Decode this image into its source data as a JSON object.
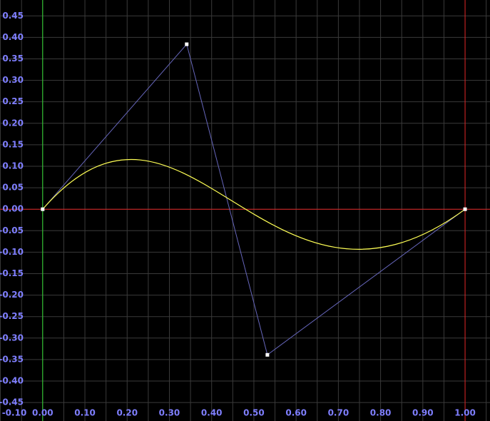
{
  "chart_data": {
    "type": "bezier",
    "x": [
      0,
      0.341,
      0.532,
      1
    ],
    "values": [
      0,
      0.384,
      -0.339,
      0
    ],
    "xlim": [
      -0.101,
      1.059
    ],
    "ylim": [
      -0.493,
      0.487
    ],
    "xticks": [
      {
        "value": -0.1,
        "label": "-0.10"
      },
      {
        "value": 0,
        "label": "0.00"
      },
      {
        "value": 0.1,
        "label": "0.10"
      },
      {
        "value": 0.2,
        "label": "0.20"
      },
      {
        "value": 0.3,
        "label": "0.30"
      },
      {
        "value": 0.4,
        "label": "0.40"
      },
      {
        "value": 0.5,
        "label": "0.50"
      },
      {
        "value": 0.6,
        "label": "0.60"
      },
      {
        "value": 0.7,
        "label": "0.70"
      },
      {
        "value": 0.8,
        "label": "0.80"
      },
      {
        "value": 0.9,
        "label": "0.90"
      },
      {
        "value": 1,
        "label": "1.00"
      }
    ],
    "yticks": [
      {
        "value": -0.45,
        "label": "-0.45"
      },
      {
        "value": -0.4,
        "label": "-0.40"
      },
      -0.35,
      {
        "value": -0.3,
        "label": "-0.30"
      },
      -0.25,
      {
        "value": -0.2,
        "label": "-0.20"
      },
      -0.15,
      {
        "value": -0.1,
        "label": "-0.10"
      },
      -0.05,
      {
        "value": 0,
        "label": "0.00"
      },
      0.05,
      {
        "value": 0.1,
        "label": "0.10"
      },
      0.15,
      {
        "value": 0.2,
        "label": "0.20"
      },
      0.25,
      {
        "value": 0.3,
        "label": "0.30"
      },
      0.35,
      {
        "value": 0.4,
        "label": "0.40"
      },
      0.45
    ],
    "grid": true,
    "grid_color": "#3a3a3a",
    "curve_color": "#ffff55",
    "polygon_color": "#6666bb",
    "point_color": "#ffffff"
  }
}
